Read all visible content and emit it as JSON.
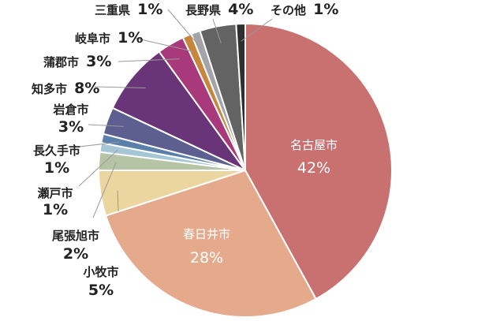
{
  "chart_data": {
    "type": "pie",
    "title": "",
    "slices": [
      {
        "label": "名古屋市",
        "value": 42,
        "display": "42%",
        "color": "#c97070"
      },
      {
        "label": "春日井市",
        "value": 28,
        "display": "28%",
        "color": "#e5a98c"
      },
      {
        "label": "小牧市",
        "value": 5,
        "display": "5%",
        "color": "#ecd6a0"
      },
      {
        "label": "尾張旭市",
        "value": 2,
        "display": "2%",
        "color": "#b5c4a5"
      },
      {
        "label": "瀬戸市",
        "value": 1,
        "display": "1%",
        "color": "#a6c6d6"
      },
      {
        "label": "長久手市",
        "value": 1,
        "display": "1%",
        "color": "#5b7fab"
      },
      {
        "label": "岩倉市",
        "value": 3,
        "display": "3%",
        "color": "#5c5f8f"
      },
      {
        "label": "知多市",
        "value": 8,
        "display": "8%",
        "color": "#6a3478"
      },
      {
        "label": "蒲郡市",
        "value": 3,
        "display": "3%",
        "color": "#a83a7c"
      },
      {
        "label": "岐阜市",
        "value": 1,
        "display": "1%",
        "color": "#c6863c"
      },
      {
        "label": "三重県",
        "value": 1,
        "display": "1%",
        "color": "#a4a4a8"
      },
      {
        "label": "長野県",
        "value": 4,
        "display": "4%",
        "color": "#636363"
      },
      {
        "label": "その他",
        "value": 1,
        "display": "1%",
        "color": "#2f2f2f"
      }
    ]
  }
}
